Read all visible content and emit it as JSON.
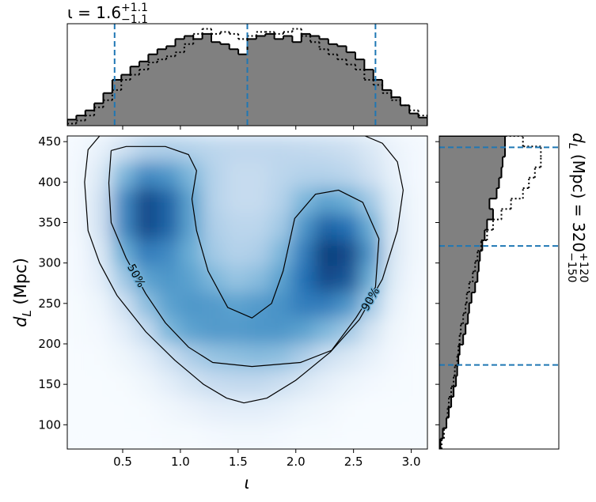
{
  "chart_data": [
    {
      "type": "heatmap",
      "xlabel": "ι",
      "ylabel": {
        "main": "d",
        "sub": "L",
        "rest": " (Mpc)"
      },
      "xlim": [
        0.02,
        3.14
      ],
      "ylim": [
        70,
        457
      ],
      "xticks": [
        0.5,
        {
          "value": 1,
          "label": "1.0"
        },
        1.5,
        {
          "value": 2,
          "label": "2.0"
        },
        2.5,
        {
          "value": 3,
          "label": "3.0"
        }
      ],
      "yticks": [
        100,
        150,
        200,
        250,
        300,
        350,
        400,
        450
      ],
      "colormap": [
        "#f7fbff",
        "#c6dbef",
        "#6baed6",
        "#2171b5",
        "#08306b"
      ],
      "density": [
        [
          0.02,
          0.08,
          0.2,
          0.3,
          0.32,
          0.3,
          0.28,
          0.27,
          0.27,
          0.27,
          0.26,
          0.25,
          0.22,
          0.15,
          0.06,
          0.02
        ],
        [
          0.03,
          0.15,
          0.45,
          0.65,
          0.6,
          0.45,
          0.3,
          0.25,
          0.25,
          0.28,
          0.3,
          0.3,
          0.28,
          0.2,
          0.08,
          0.02
        ],
        [
          0.03,
          0.2,
          0.65,
          0.9,
          0.8,
          0.55,
          0.3,
          0.25,
          0.25,
          0.3,
          0.45,
          0.55,
          0.5,
          0.35,
          0.12,
          0.03
        ],
        [
          0.03,
          0.2,
          0.65,
          0.9,
          0.8,
          0.55,
          0.32,
          0.28,
          0.28,
          0.35,
          0.6,
          0.8,
          0.75,
          0.5,
          0.15,
          0.03
        ],
        [
          0.02,
          0.15,
          0.5,
          0.7,
          0.65,
          0.5,
          0.35,
          0.3,
          0.32,
          0.45,
          0.7,
          0.95,
          0.9,
          0.6,
          0.15,
          0.03
        ],
        [
          0.02,
          0.1,
          0.35,
          0.55,
          0.6,
          0.55,
          0.45,
          0.38,
          0.42,
          0.55,
          0.75,
          0.9,
          0.85,
          0.5,
          0.12,
          0.02
        ],
        [
          0.01,
          0.05,
          0.2,
          0.4,
          0.55,
          0.6,
          0.58,
          0.55,
          0.58,
          0.62,
          0.7,
          0.7,
          0.6,
          0.35,
          0.08,
          0.01
        ],
        [
          0.01,
          0.02,
          0.1,
          0.25,
          0.45,
          0.55,
          0.58,
          0.58,
          0.6,
          0.6,
          0.55,
          0.45,
          0.35,
          0.18,
          0.04,
          0.01
        ],
        [
          0,
          0.01,
          0.04,
          0.1,
          0.22,
          0.32,
          0.38,
          0.4,
          0.42,
          0.4,
          0.32,
          0.22,
          0.15,
          0.08,
          0.02,
          0
        ],
        [
          0,
          0,
          0.01,
          0.04,
          0.1,
          0.18,
          0.24,
          0.26,
          0.26,
          0.22,
          0.15,
          0.09,
          0.05,
          0.02,
          0.01,
          0
        ],
        [
          0,
          0,
          0,
          0.01,
          0.03,
          0.06,
          0.09,
          0.1,
          0.1,
          0.08,
          0.05,
          0.03,
          0.01,
          0,
          0,
          0
        ],
        [
          0,
          0,
          0,
          0,
          0.01,
          0.01,
          0.02,
          0.03,
          0.03,
          0.02,
          0.01,
          0.01,
          0,
          0,
          0,
          0
        ]
      ],
      "contours": [
        {
          "label": "50%",
          "x": [
            0.4,
            0.53,
            0.87,
            1.07,
            1.14,
            1.1,
            1.14,
            1.24,
            1.41,
            1.62,
            1.79,
            1.89,
            1.99,
            2.17,
            2.37,
            2.58,
            2.72,
            2.69,
            2.52,
            2.31,
            2.04,
            1.62,
            1.28,
            1.07,
            0.87,
            0.7,
            0.53,
            0.4,
            0.38,
            0.4
          ],
          "y": [
            439,
            444,
            444,
            434,
            414,
            379,
            340,
            290,
            245,
            232,
            250,
            290,
            355,
            385,
            390,
            375,
            330,
            270,
            232,
            192,
            177,
            172,
            177,
            196,
            226,
            262,
            306,
            350,
            399,
            439
          ]
        },
        {
          "label": "90%",
          "x": [
            0.3,
            0.2,
            0.17,
            0.2,
            0.3,
            0.45,
            0.7,
            0.95,
            1.2,
            1.4,
            1.55,
            1.75,
            2.0,
            2.3,
            2.55,
            2.75,
            2.88,
            2.93,
            2.88,
            2.75,
            2.6
          ],
          "y": [
            457,
            440,
            400,
            340,
            300,
            260,
            215,
            180,
            150,
            133,
            127,
            133,
            155,
            190,
            230,
            280,
            340,
            390,
            425,
            448,
            457
          ]
        }
      ],
      "contour_color": "#000000"
    },
    {
      "type": "histogram",
      "orientation": "vertical",
      "title": {
        "text": "ι = 1.6",
        "sup": "+1.1",
        "sub": "−1.1"
      },
      "xlim": [
        0.02,
        3.14
      ],
      "ylim": [
        0,
        1
      ],
      "xticks": [
        0.5,
        1,
        1.5,
        2,
        2.5,
        3
      ],
      "bins": [
        0.02,
        0.098,
        0.176,
        0.254,
        0.332,
        0.41,
        0.488,
        0.566,
        0.644,
        0.722,
        0.8,
        0.878,
        0.956,
        1.034,
        1.112,
        1.19,
        1.268,
        1.346,
        1.424,
        1.502,
        1.58,
        1.658,
        1.736,
        1.814,
        1.892,
        1.97,
        2.048,
        2.126,
        2.204,
        2.282,
        2.36,
        2.438,
        2.516,
        2.594,
        2.672,
        2.75,
        2.828,
        2.906,
        2.984,
        3.062,
        3.14
      ],
      "series": [
        {
          "style": "filled",
          "color": "#808080",
          "edgecolor": "#000000",
          "values": [
            0.06,
            0.1,
            0.15,
            0.22,
            0.32,
            0.45,
            0.5,
            0.58,
            0.63,
            0.7,
            0.75,
            0.78,
            0.85,
            0.88,
            0.85,
            0.9,
            0.82,
            0.8,
            0.75,
            0.7,
            0.85,
            0.88,
            0.9,
            0.85,
            0.88,
            0.82,
            0.9,
            0.88,
            0.85,
            0.8,
            0.78,
            0.72,
            0.65,
            0.55,
            0.45,
            0.35,
            0.28,
            0.2,
            0.12,
            0.08
          ]
        },
        {
          "style": "dotted",
          "color": "#000000",
          "values": [
            0.02,
            0.05,
            0.1,
            0.18,
            0.25,
            0.35,
            0.45,
            0.5,
            0.55,
            0.62,
            0.65,
            0.68,
            0.72,
            0.8,
            0.9,
            0.95,
            0.9,
            0.92,
            0.9,
            0.85,
            0.88,
            0.92,
            0.92,
            0.9,
            0.92,
            0.95,
            0.88,
            0.82,
            0.75,
            0.7,
            0.65,
            0.6,
            0.55,
            0.45,
            0.4,
            0.32,
            0.25,
            0.2,
            0.15,
            0.1
          ]
        }
      ],
      "markers": [
        0.43,
        1.58,
        2.69
      ],
      "marker_color": "#1f77b4"
    },
    {
      "type": "histogram",
      "orientation": "horizontal",
      "title": {
        "main": "d",
        "sub_l": "L",
        "text": " (Mpc) = 320",
        "sup": "+120",
        "sub": "−150"
      },
      "xlim": [
        0,
        1
      ],
      "ylim": [
        70,
        457
      ],
      "yticks": [
        100,
        150,
        200,
        250,
        300,
        350,
        400,
        450
      ],
      "bins": [
        70,
        82.9,
        95.8,
        108.7,
        121.6,
        134.5,
        147.4,
        160.3,
        173.2,
        186.1,
        199,
        211.9,
        224.8,
        237.7,
        250.6,
        263.5,
        276.4,
        289.3,
        302.2,
        315.1,
        328,
        340.9,
        353.8,
        366.7,
        379.6,
        392.5,
        405.4,
        418.3,
        431.2,
        444.1,
        457
      ],
      "series": [
        {
          "style": "filled",
          "color": "#808080",
          "edgecolor": "#000000",
          "values": [
            0.01,
            0.03,
            0.06,
            0.08,
            0.1,
            0.12,
            0.14,
            0.15,
            0.16,
            0.17,
            0.2,
            0.22,
            0.24,
            0.25,
            0.27,
            0.3,
            0.32,
            0.33,
            0.34,
            0.36,
            0.38,
            0.4,
            0.45,
            0.42,
            0.48,
            0.5,
            0.52,
            0.53,
            0.55,
            0.55
          ]
        },
        {
          "style": "dotted",
          "color": "#000000",
          "values": [
            0.02,
            0.04,
            0.06,
            0.07,
            0.08,
            0.1,
            0.12,
            0.13,
            0.15,
            0.16,
            0.17,
            0.18,
            0.2,
            0.22,
            0.23,
            0.25,
            0.28,
            0.3,
            0.32,
            0.35,
            0.4,
            0.45,
            0.52,
            0.6,
            0.7,
            0.75,
            0.8,
            0.85,
            0.85,
            0.7
          ]
        }
      ],
      "markers": [
        174,
        321,
        443
      ],
      "marker_color": "#1f77b4"
    }
  ]
}
